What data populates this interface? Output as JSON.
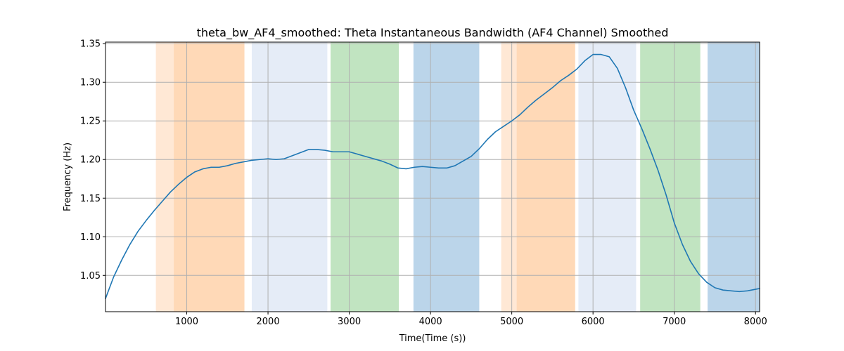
{
  "chart_data": {
    "type": "line",
    "title": "theta_bw_AF4_smoothed: Theta Instantaneous Bandwidth (AF4 Channel) Smoothed",
    "xlabel": "Time(Time (s))",
    "ylabel": "Frequency (Hz)",
    "xlim": [
      0,
      8050
    ],
    "ylim": [
      1.003,
      1.352
    ],
    "xticks": [
      1000,
      2000,
      3000,
      4000,
      5000,
      6000,
      7000,
      8000
    ],
    "yticks": [
      1.05,
      1.1,
      1.15,
      1.2,
      1.25,
      1.3,
      1.35
    ],
    "grid": true,
    "line_color": "#1f77b4",
    "bands": [
      {
        "x0": 620,
        "x1": 840,
        "color": "#ffe8d5"
      },
      {
        "x0": 840,
        "x1": 1710,
        "color": "#ffd9b7"
      },
      {
        "x0": 1800,
        "x1": 2730,
        "color": "#e5ecf7"
      },
      {
        "x0": 2770,
        "x1": 3610,
        "color": "#c1e4c1"
      },
      {
        "x0": 3790,
        "x1": 4600,
        "color": "#bbd5ea"
      },
      {
        "x0": 4870,
        "x1": 5060,
        "color": "#ffe8d5"
      },
      {
        "x0": 5060,
        "x1": 5780,
        "color": "#ffd9b7"
      },
      {
        "x0": 5820,
        "x1": 6530,
        "color": "#e5ecf7"
      },
      {
        "x0": 6580,
        "x1": 7320,
        "color": "#c1e4c1"
      },
      {
        "x0": 7410,
        "x1": 8050,
        "color": "#bbd5ea"
      }
    ],
    "series": [
      {
        "x": [
          0,
          100,
          200,
          300,
          400,
          500,
          600,
          700,
          800,
          900,
          1000,
          1100,
          1200,
          1300,
          1400,
          1500,
          1600,
          1700,
          1800,
          1900,
          2000,
          2100,
          2200,
          2300,
          2400,
          2500,
          2600,
          2700,
          2800,
          2900,
          3000,
          3100,
          3200,
          3300,
          3400,
          3500,
          3600,
          3700,
          3800,
          3900,
          4000,
          4100,
          4200,
          4300,
          4400,
          4500,
          4600,
          4700,
          4800,
          4900,
          5000,
          5100,
          5200,
          5300,
          5400,
          5500,
          5600,
          5700,
          5800,
          5900,
          6000,
          6100,
          6200,
          6300,
          6400,
          6500,
          6600,
          6700,
          6800,
          6900,
          7000,
          7100,
          7200,
          7300,
          7400,
          7500,
          7600,
          7700,
          7800,
          7900,
          8000,
          8050
        ],
        "y": [
          1.02,
          1.048,
          1.07,
          1.09,
          1.107,
          1.121,
          1.134,
          1.146,
          1.158,
          1.168,
          1.177,
          1.184,
          1.188,
          1.19,
          1.19,
          1.192,
          1.195,
          1.197,
          1.199,
          1.2,
          1.201,
          1.2,
          1.201,
          1.205,
          1.209,
          1.213,
          1.213,
          1.212,
          1.21,
          1.21,
          1.21,
          1.207,
          1.204,
          1.201,
          1.198,
          1.194,
          1.189,
          1.188,
          1.19,
          1.191,
          1.19,
          1.189,
          1.189,
          1.192,
          1.198,
          1.204,
          1.214,
          1.226,
          1.236,
          1.243,
          1.25,
          1.258,
          1.268,
          1.277,
          1.285,
          1.293,
          1.302,
          1.309,
          1.317,
          1.328,
          1.336,
          1.336,
          1.333,
          1.318,
          1.293,
          1.264,
          1.24,
          1.214,
          1.186,
          1.154,
          1.118,
          1.09,
          1.068,
          1.052,
          1.041,
          1.034,
          1.031,
          1.03,
          1.029,
          1.03,
          1.032,
          1.033
        ]
      }
    ]
  }
}
